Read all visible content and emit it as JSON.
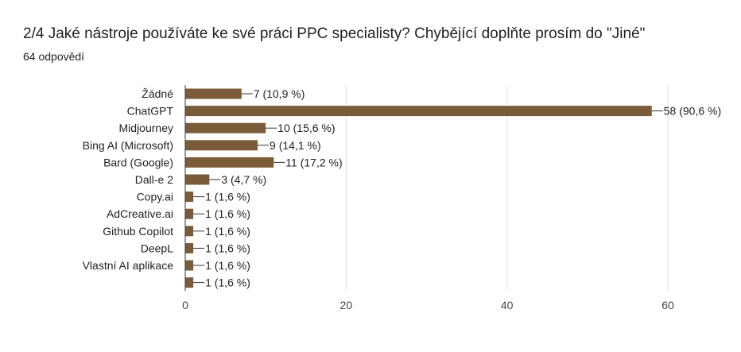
{
  "question": {
    "title": "2/4 Jaké nástroje používáte ke své práci PPC specialisty?  Chybějící doplňte prosím do \"Jiné\"",
    "response_count": "64 odpovědí"
  },
  "colors": {
    "bar": "#7a5c3a",
    "axis": "#333333",
    "gridline": "#e0e0e0"
  },
  "chart_data": {
    "type": "bar",
    "orientation": "horizontal",
    "categories": [
      "Žádné",
      "ChatGPT",
      "Midjourney",
      "Bing AI (Microsoft)",
      "Bard (Google)",
      "Dall-e 2",
      "Copy.ai",
      "AdCreative.ai",
      "Github Copilot",
      "DeepL",
      "Vlastní AI aplikace",
      ""
    ],
    "values": [
      7,
      58,
      10,
      9,
      11,
      3,
      1,
      1,
      1,
      1,
      1,
      1
    ],
    "value_labels": [
      "7 (10,9 %)",
      "58 (90,6 %)",
      "10 (15,6 %)",
      "9 (14,1 %)",
      "11 (17,2 %)",
      "3 (4,7 %)",
      "1 (1,6 %)",
      "1 (1,6 %)",
      "1 (1,6 %)",
      "1 (1,6 %)",
      "1 (1,6 %)",
      "1 (1,6 %)"
    ],
    "xlim": [
      0,
      60
    ],
    "xticks": [
      "0",
      "20",
      "40",
      "60"
    ],
    "grid": true
  }
}
